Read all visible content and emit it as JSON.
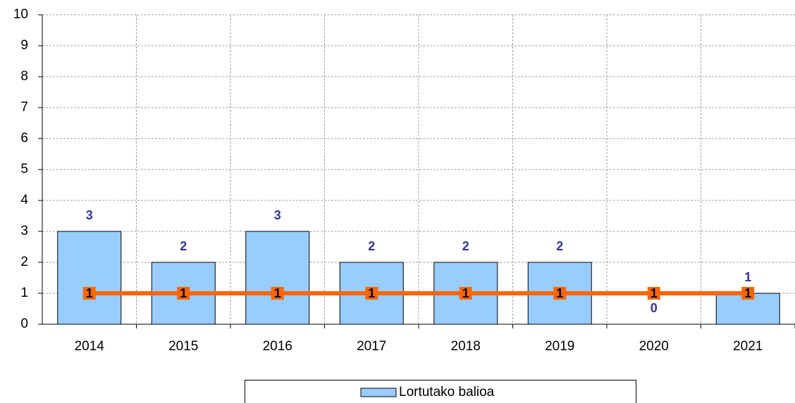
{
  "chart_data": {
    "type": "bar",
    "categories": [
      "2014",
      "2015",
      "2016",
      "2017",
      "2018",
      "2019",
      "2020",
      "2021"
    ],
    "series": [
      {
        "name": "Lortutako balioa",
        "type": "bar",
        "color": "#99ccff",
        "values": [
          3,
          2,
          3,
          2,
          2,
          2,
          0,
          1
        ]
      },
      {
        "type": "line",
        "color": "#ff6600",
        "values": [
          1,
          1,
          1,
          1,
          1,
          1,
          1,
          1
        ]
      }
    ],
    "ylim": [
      0,
      10
    ],
    "yticks": [
      0,
      1,
      2,
      3,
      4,
      5,
      6,
      7,
      8,
      9,
      10
    ],
    "grid": true
  }
}
